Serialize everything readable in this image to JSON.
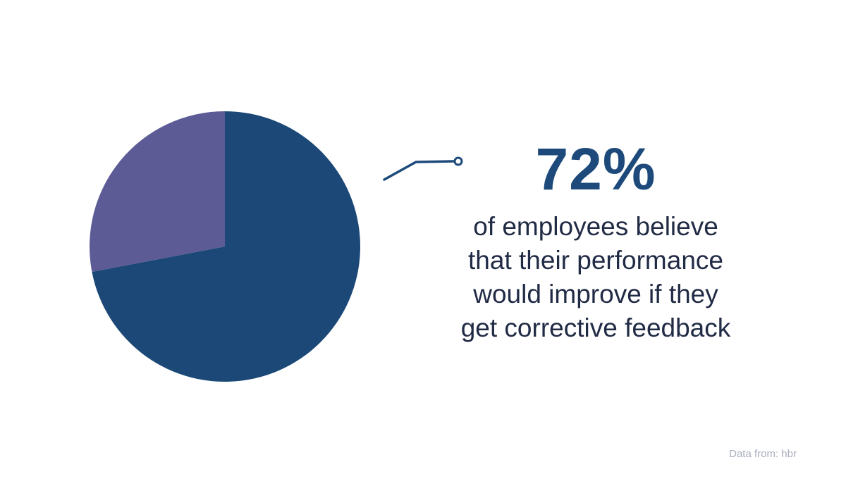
{
  "page": {
    "background": "#ffffff"
  },
  "chart_data": {
    "type": "pie",
    "title": "72% of employees believe that their performance would improve if they get corrective feedback",
    "slices": [
      {
        "label": "employees who believe performance would improve with corrective feedback",
        "value": 72,
        "color": "#1b4876"
      },
      {
        "label": "rest",
        "value": 28,
        "color": "#5d5b95"
      }
    ],
    "start_angle_deg": -90,
    "direction": "clockwise",
    "legend_position": "none",
    "data_labels": false,
    "source": "Data from: hbr"
  },
  "stat": {
    "value": "72%",
    "description_lines": [
      "of employees believe",
      "that their performance",
      "would improve if they",
      "get corrective feedback"
    ]
  },
  "source": {
    "text": "Data from: hbr"
  },
  "colors": {
    "stat_value": "#1d4a7b",
    "body_text": "#212b45",
    "source_text": "#a9aebc",
    "callout_line": "#1d4a7b",
    "pie_primary": "#1b4876",
    "pie_secondary": "#5d5b95"
  }
}
